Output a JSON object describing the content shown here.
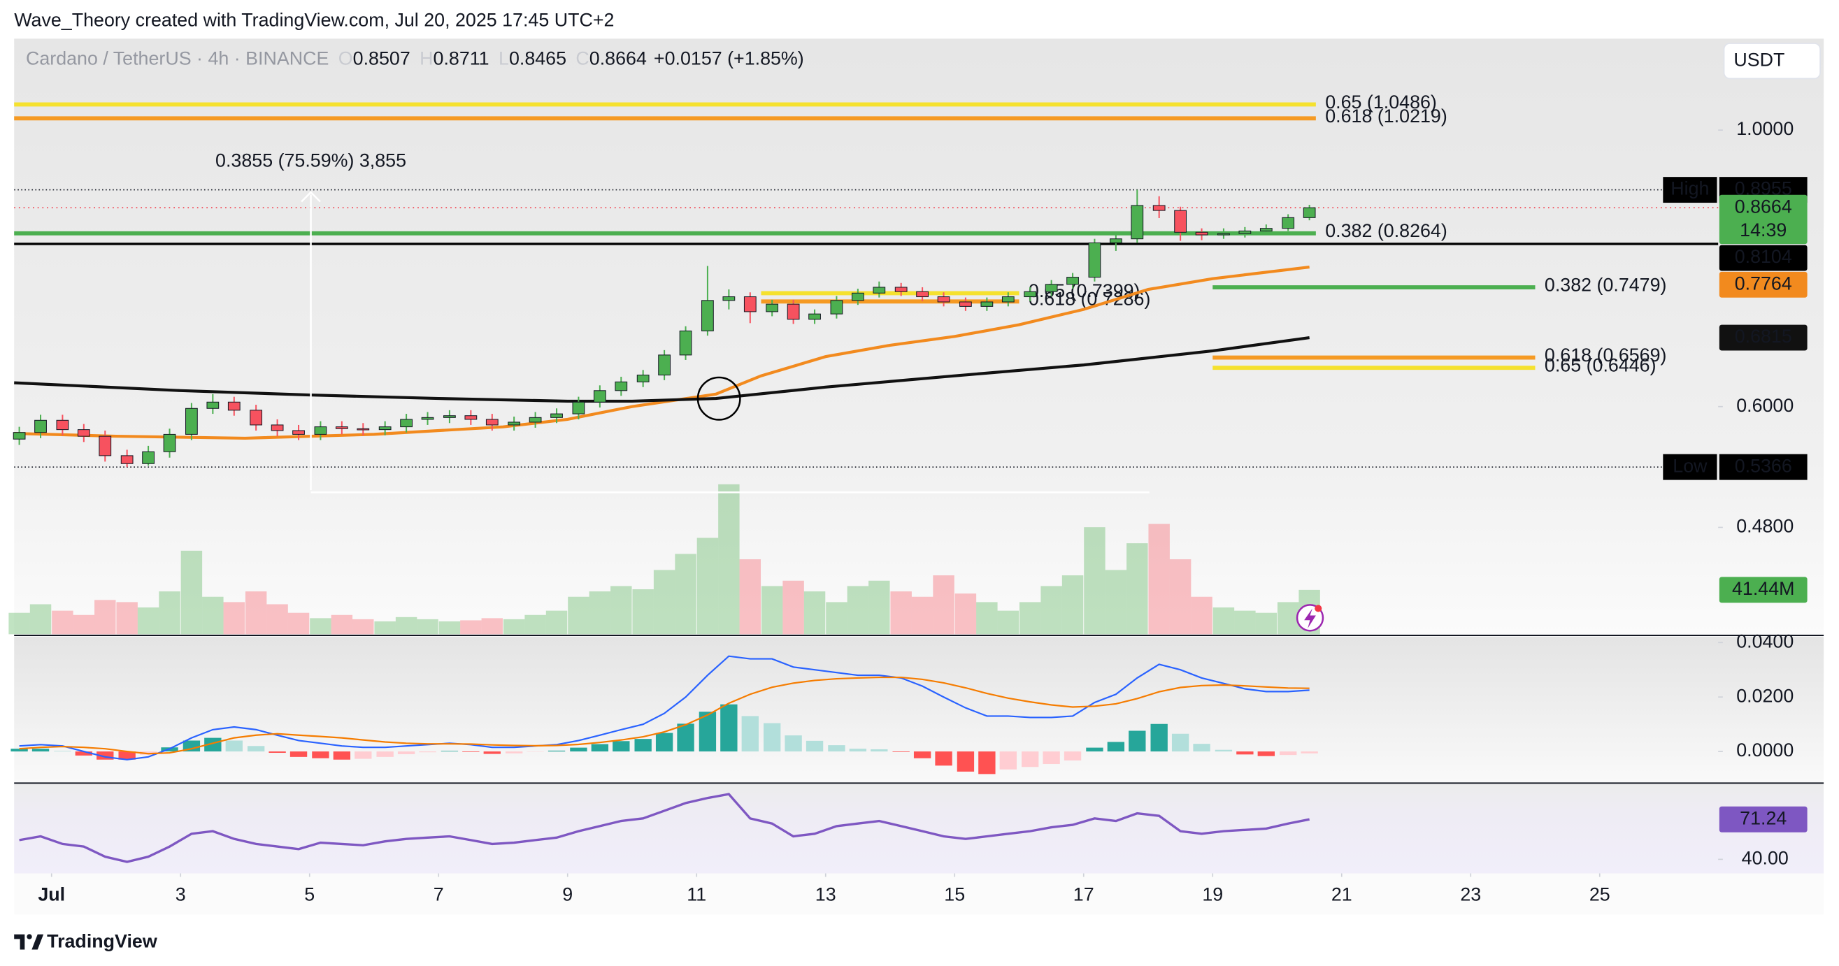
{
  "header": "Wave_Theory created with TradingView.com, Jul 20, 2025 17:45 UTC+2",
  "footer": "TradingView",
  "chart_data": {
    "type": "candlestick",
    "title": "Cardano / TetherUS · 4h · BINANCE",
    "ohlc_legend": [
      {
        "key": "O",
        "value": 0.8507
      },
      {
        "key": "H",
        "value": 0.8711
      },
      {
        "key": "L",
        "value": 0.8465
      },
      {
        "key": "C",
        "value": 0.8664
      }
    ],
    "change": "+0.0157 (+1.85%)",
    "currency": "USDT",
    "log_scale": true,
    "grid": false,
    "up_color": "#4caf50",
    "down_color": "#f7525f",
    "xlim": [
      0.42,
      26.8
    ],
    "xticks": [
      {
        "value": 1,
        "label": "Jul"
      },
      3,
      5,
      7,
      9,
      11,
      13,
      15,
      17,
      19,
      21,
      23,
      25
    ],
    "ylim": [
      0.394,
      1.184
    ],
    "yticks": [
      {
        "value": 1.0,
        "label": "1.0000"
      },
      {
        "value": 0.6,
        "label": "0.6000"
      },
      {
        "value": 0.48,
        "label": "0.4800"
      }
    ],
    "candles": {
      "x": [
        0.5,
        0.83,
        1.17,
        1.5,
        1.83,
        2.17,
        2.5,
        2.83,
        3.17,
        3.5,
        3.83,
        4.17,
        4.5,
        4.83,
        5.17,
        5.5,
        5.83,
        6.17,
        6.5,
        6.83,
        7.17,
        7.5,
        7.83,
        8.17,
        8.5,
        8.83,
        9.17,
        9.5,
        9.83,
        10.17,
        10.5,
        10.83,
        11.17,
        11.5,
        11.83,
        12.17,
        12.5,
        12.83,
        13.17,
        13.5,
        13.83,
        14.17,
        14.5,
        14.83,
        15.17,
        15.5,
        15.83,
        16.17,
        16.5,
        16.83,
        17.17,
        17.5,
        17.83,
        18.17,
        18.5,
        18.83,
        19.17,
        19.5,
        19.83,
        20.17,
        20.5
      ],
      "open": [
        0.565,
        0.572,
        0.585,
        0.575,
        0.568,
        0.548,
        0.54,
        0.552,
        0.57,
        0.598,
        0.605,
        0.596,
        0.58,
        0.574,
        0.57,
        0.578,
        0.576,
        0.575,
        0.578,
        0.586,
        0.588,
        0.59,
        0.586,
        0.58,
        0.583,
        0.588,
        0.592,
        0.605,
        0.618,
        0.628,
        0.636,
        0.66,
        0.69,
        0.73,
        0.735,
        0.715,
        0.725,
        0.705,
        0.712,
        0.73,
        0.74,
        0.748,
        0.742,
        0.735,
        0.728,
        0.722,
        0.728,
        0.735,
        0.742,
        0.752,
        0.762,
        0.812,
        0.818,
        0.87,
        0.862,
        0.828,
        0.824,
        0.826,
        0.83,
        0.834,
        0.8507
      ],
      "high": [
        0.578,
        0.591,
        0.591,
        0.581,
        0.574,
        0.554,
        0.558,
        0.576,
        0.604,
        0.614,
        0.611,
        0.602,
        0.586,
        0.58,
        0.584,
        0.584,
        0.582,
        0.584,
        0.592,
        0.594,
        0.596,
        0.596,
        0.592,
        0.589,
        0.594,
        0.598,
        0.611,
        0.624,
        0.634,
        0.642,
        0.666,
        0.696,
        0.778,
        0.745,
        0.741,
        0.731,
        0.731,
        0.718,
        0.736,
        0.746,
        0.756,
        0.754,
        0.748,
        0.741,
        0.734,
        0.734,
        0.741,
        0.748,
        0.758,
        0.768,
        0.818,
        0.826,
        0.8955,
        0.885,
        0.868,
        0.834,
        0.834,
        0.836,
        0.84,
        0.856,
        0.8711
      ],
      "low": [
        0.559,
        0.566,
        0.569,
        0.562,
        0.542,
        0.5366,
        0.538,
        0.546,
        0.564,
        0.592,
        0.59,
        0.574,
        0.568,
        0.564,
        0.564,
        0.57,
        0.569,
        0.569,
        0.572,
        0.58,
        0.582,
        0.58,
        0.574,
        0.574,
        0.577,
        0.582,
        0.586,
        0.599,
        0.612,
        0.622,
        0.63,
        0.654,
        0.684,
        0.718,
        0.7,
        0.709,
        0.699,
        0.699,
        0.706,
        0.724,
        0.734,
        0.736,
        0.729,
        0.722,
        0.716,
        0.716,
        0.722,
        0.729,
        0.736,
        0.746,
        0.756,
        0.8,
        0.812,
        0.85,
        0.815,
        0.816,
        0.818,
        0.82,
        0.826,
        0.83,
        0.8465
      ],
      "close": [
        0.572,
        0.585,
        0.575,
        0.568,
        0.548,
        0.54,
        0.552,
        0.57,
        0.598,
        0.605,
        0.596,
        0.58,
        0.574,
        0.57,
        0.578,
        0.576,
        0.575,
        0.578,
        0.586,
        0.588,
        0.59,
        0.586,
        0.58,
        0.583,
        0.588,
        0.592,
        0.605,
        0.618,
        0.628,
        0.636,
        0.66,
        0.69,
        0.73,
        0.735,
        0.715,
        0.725,
        0.705,
        0.712,
        0.73,
        0.74,
        0.748,
        0.742,
        0.735,
        0.728,
        0.722,
        0.728,
        0.735,
        0.742,
        0.752,
        0.762,
        0.812,
        0.818,
        0.87,
        0.862,
        0.828,
        0.824,
        0.826,
        0.83,
        0.834,
        0.8507,
        0.8664
      ]
    },
    "last_price": {
      "value": 0.8664,
      "countdown": "14:39"
    },
    "moving_averages": [
      {
        "color": "#f28a1e",
        "x": [
          0.42,
          2,
          4,
          6,
          8,
          9,
          10,
          11.3,
          12,
          13,
          14,
          15,
          16,
          17,
          18,
          19,
          20.5
        ],
        "values": [
          0.571,
          0.568,
          0.566,
          0.57,
          0.578,
          0.586,
          0.6,
          0.614,
          0.635,
          0.658,
          0.672,
          0.683,
          0.698,
          0.718,
          0.745,
          0.76,
          0.7764
        ]
      },
      {
        "color": "#111111",
        "x": [
          0.42,
          3,
          5,
          7,
          9,
          10,
          11.3,
          13,
          15,
          17,
          19,
          20.5
        ],
        "values": [
          0.627,
          0.618,
          0.613,
          0.609,
          0.606,
          0.606,
          0.609,
          0.622,
          0.635,
          0.648,
          0.665,
          0.6815
        ]
      }
    ],
    "levels": [
      {
        "label": "0.65 (1.0486)",
        "value": 1.0486,
        "color": "#f5e12e",
        "x": [
          0.42,
          20.6
        ]
      },
      {
        "label": "0.618 (1.0219)",
        "value": 1.0219,
        "color": "#f59a23",
        "x": [
          0.42,
          20.6
        ]
      },
      {
        "label": "0.382 (0.8264)",
        "value": 0.8264,
        "color": "#4caf50",
        "x": [
          0.42,
          20.6
        ]
      },
      {
        "label": "0.382 (0.7479)",
        "value": 0.7479,
        "color": "#4caf50",
        "x": [
          19,
          24
        ]
      },
      {
        "label": "0.618 (0.6569)",
        "value": 0.6569,
        "color": "#f59a23",
        "x": [
          19,
          24
        ]
      },
      {
        "label": "0.65 (0.6446)",
        "value": 0.6446,
        "color": "#f5e12e",
        "x": [
          19,
          24
        ]
      },
      {
        "label": "0.65 (0.7399)",
        "value": 0.7399,
        "color": "#f5e12e",
        "x": [
          12,
          16
        ]
      },
      {
        "label": "0.618 (0.7286)",
        "value": 0.7286,
        "color": "#f59a23",
        "x": [
          12,
          16
        ]
      }
    ],
    "support": {
      "value": 0.8104
    },
    "markers": [
      {
        "name": "High",
        "value": 0.8955
      },
      {
        "name": "Low",
        "value": 0.5366
      }
    ],
    "measure_label": "0.3855 (75.59%) 3,855",
    "volume": {
      "ylim": [
        0,
        150
      ],
      "last_label": "41.44M",
      "values": [
        20,
        28,
        22,
        18,
        32,
        30,
        25,
        40,
        78,
        35,
        30,
        40,
        28,
        20,
        15,
        18,
        14,
        12,
        16,
        14,
        12,
        13,
        15,
        14,
        18,
        22,
        35,
        40,
        45,
        42,
        60,
        75,
        90,
        140,
        70,
        45,
        50,
        40,
        30,
        45,
        50,
        40,
        35,
        55,
        38,
        30,
        22,
        30,
        45,
        55,
        100,
        60,
        85,
        103,
        70,
        35,
        25,
        22,
        20,
        30,
        41.44
      ]
    },
    "macd": {
      "ylim": [
        -0.0112,
        0.0422
      ],
      "yticks": [
        {
          "value": 0.04,
          "label": "0.0400"
        },
        {
          "value": 0.02,
          "label": "0.0200"
        },
        {
          "value": 0,
          "label": "0.0000"
        }
      ],
      "series": [
        {
          "color": "#2962ff",
          "values": [
            0.002,
            0.0025,
            0.002,
            0.0,
            -0.002,
            -0.003,
            -0.002,
            0.001,
            0.005,
            0.008,
            0.009,
            0.008,
            0.006,
            0.004,
            0.003,
            0.002,
            0.0015,
            0.0015,
            0.002,
            0.0025,
            0.003,
            0.0025,
            0.0015,
            0.0015,
            0.002,
            0.0025,
            0.004,
            0.006,
            0.008,
            0.01,
            0.014,
            0.02,
            0.028,
            0.035,
            0.034,
            0.034,
            0.031,
            0.03,
            0.029,
            0.028,
            0.028,
            0.027,
            0.024,
            0.02,
            0.016,
            0.013,
            0.013,
            0.0125,
            0.0125,
            0.013,
            0.018,
            0.021,
            0.027,
            0.032,
            0.03,
            0.027,
            0.025,
            0.023,
            0.022,
            0.022,
            0.0225
          ]
        },
        {
          "color": "#f57c00",
          "values": [
            0.001,
            0.0015,
            0.0018,
            0.0015,
            0.001,
            0.0,
            -0.0008,
            -0.0005,
            0.001,
            0.003,
            0.005,
            0.006,
            0.0065,
            0.006,
            0.0055,
            0.005,
            0.0042,
            0.0035,
            0.003,
            0.0028,
            0.0028,
            0.0027,
            0.0024,
            0.0022,
            0.0021,
            0.0022,
            0.0026,
            0.0033,
            0.0042,
            0.0054,
            0.0072,
            0.0098,
            0.0134,
            0.0177,
            0.021,
            0.0236,
            0.0251,
            0.0261,
            0.0267,
            0.027,
            0.0272,
            0.0272,
            0.0265,
            0.0252,
            0.0234,
            0.0213,
            0.0196,
            0.0182,
            0.0171,
            0.0163,
            0.0166,
            0.0175,
            0.0194,
            0.0219,
            0.0235,
            0.0242,
            0.0244,
            0.0241,
            0.0237,
            0.0233,
            0.0232
          ]
        }
      ],
      "histogram": [
        0.001,
        0.001,
        0.0002,
        -0.0015,
        -0.003,
        -0.003,
        -0.0012,
        0.0015,
        0.004,
        0.005,
        0.004,
        0.002,
        -0.0005,
        -0.002,
        -0.0025,
        -0.003,
        -0.0027,
        -0.002,
        -0.001,
        -0.0003,
        0.0002,
        -0.0002,
        -0.0009,
        -0.0007,
        -0.0001,
        0.0003,
        0.0014,
        0.0027,
        0.0038,
        0.0046,
        0.0068,
        0.0102,
        0.0146,
        0.0173,
        0.013,
        0.0104,
        0.0059,
        0.0039,
        0.0023,
        0.001,
        0.0008,
        -0.0002,
        -0.0025,
        -0.0052,
        -0.0074,
        -0.0083,
        -0.0066,
        -0.0057,
        -0.0046,
        -0.0033,
        0.0014,
        0.0035,
        0.0076,
        0.0101,
        0.0065,
        0.0028,
        0.0006,
        -0.0011,
        -0.0017,
        -0.0013,
        -0.0007
      ]
    },
    "rsi": {
      "ylim": [
        29,
        98.7
      ],
      "yticks": [
        {
          "value": 40,
          "label": "40.00"
        }
      ],
      "color": "#7e57c2",
      "values": [
        55,
        58,
        52,
        50,
        42,
        38,
        42,
        50,
        60,
        62,
        56,
        52,
        50,
        48,
        53,
        52,
        51,
        54,
        56,
        57,
        58,
        55,
        52,
        53,
        55,
        57,
        62,
        66,
        70,
        72,
        78,
        84,
        88,
        91,
        72,
        68,
        58,
        60,
        66,
        68,
        70,
        66,
        62,
        58,
        56,
        58,
        60,
        62,
        65,
        67,
        72,
        70,
        76,
        74,
        62,
        60,
        62,
        63,
        64,
        68,
        71.24
      ]
    }
  }
}
